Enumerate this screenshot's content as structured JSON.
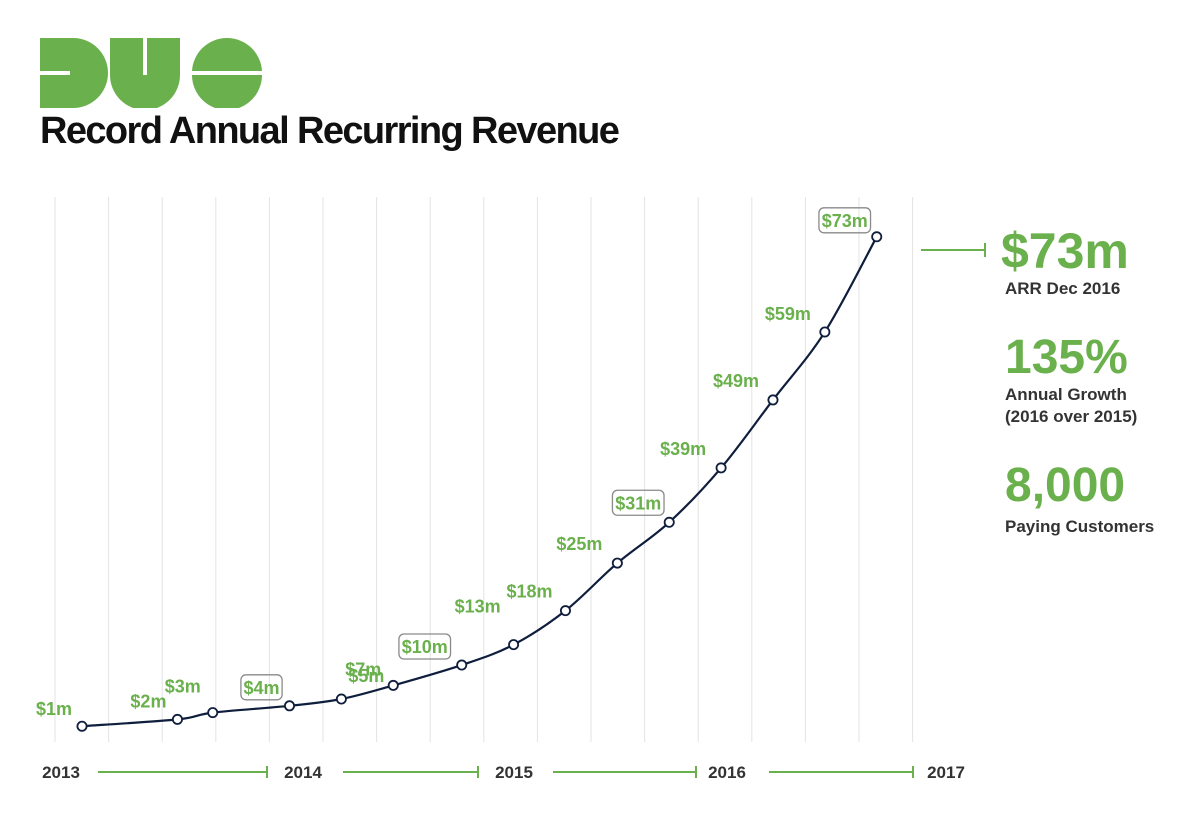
{
  "header": {
    "logo": "DUO",
    "title": "Record Annual Recurring Revenue"
  },
  "colors": {
    "accent": "#6ab04c",
    "logo_green": "#6ab04c",
    "line": "#0f1e3c",
    "gridline": "#e3e3e3",
    "callout_border": "#8a8a8a"
  },
  "stats": {
    "arr_value": "$73m",
    "arr_label": "ARR Dec 2016",
    "growth_value": "135%",
    "growth_label_1": "Annual Growth",
    "growth_label_2": "(2016 over 2015)",
    "customers_value": "8,000",
    "customers_label": "Paying Customers"
  },
  "chart_data": {
    "type": "line",
    "title": "Record Annual Recurring Revenue",
    "xlabel": "",
    "ylabel": "",
    "x_ticks": [
      "2013",
      "2014",
      "2015",
      "2016",
      "2017"
    ],
    "x": [
      2013.0,
      2013.46,
      2013.63,
      2014.0,
      2014.25,
      2014.5,
      2014.83,
      2015.08,
      2015.33,
      2015.58,
      2015.83,
      2016.08,
      2016.33,
      2016.58,
      2016.83
    ],
    "values": [
      1,
      2,
      3,
      4,
      5,
      7,
      10,
      13,
      18,
      25,
      31,
      39,
      49,
      59,
      73
    ],
    "labels": [
      "$1m",
      "$2m",
      "$3m",
      "$4m",
      "$5m",
      "$7m",
      "$10m",
      "$13m",
      "$18m",
      "$25m",
      "$31m",
      "$39m",
      "$49m",
      "$59m",
      "$73m"
    ],
    "boxed_labels": [
      "$4m",
      "$10m",
      "$31m",
      "$73m"
    ],
    "ylim": [
      0,
      74
    ],
    "grid": "vertical",
    "legend": "none"
  }
}
